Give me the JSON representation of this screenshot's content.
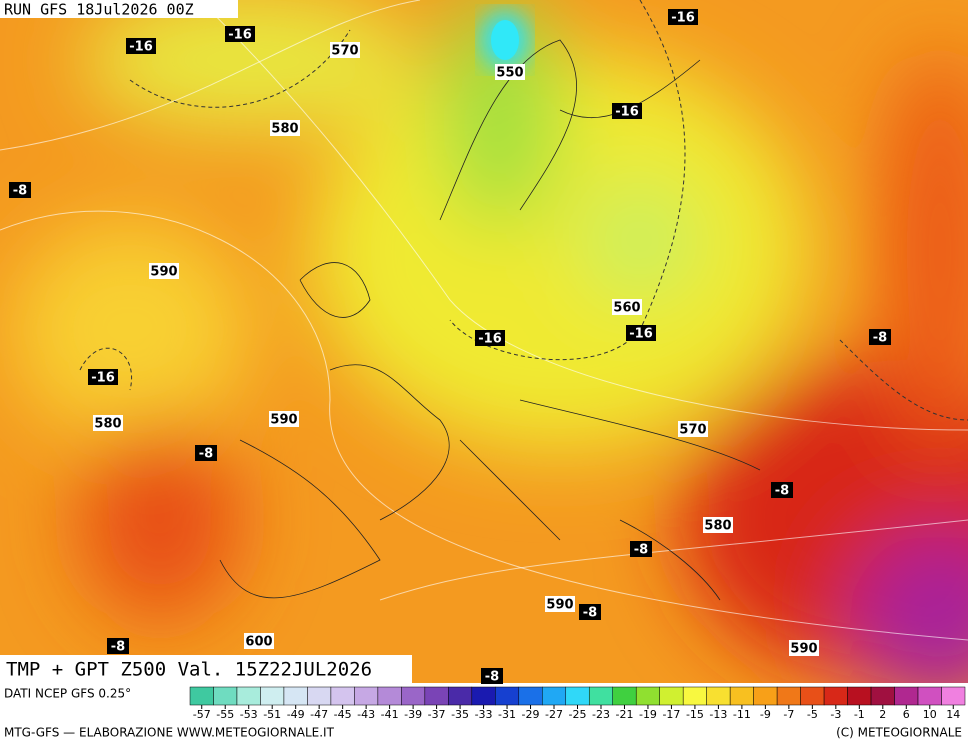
{
  "header": {
    "run": "RUN GFS 18Jul2026 00Z"
  },
  "map": {
    "labels": [
      "-16",
      "-16",
      "570",
      "-16",
      "550",
      "580",
      "-16",
      "-8",
      "590",
      "560",
      "-16",
      "-16",
      "-8",
      "-16",
      "580",
      "590",
      "570",
      "-8",
      "-8",
      "580",
      "-8",
      "590",
      "-8",
      "-8",
      "600",
      "590",
      "-8"
    ]
  },
  "footer": {
    "title": "TMP + GPT Z500 Val. 15Z22JUL2026",
    "source": "DATI NCEP GFS 0.25°",
    "credit": "MTG-GFS — ELABORAZIONE WWW.METEOGIORNALE.IT",
    "copyright": "(C) METEOGIORNALE"
  },
  "colorbar": {
    "ticks": [
      -57,
      -55,
      -53,
      -51,
      -49,
      -47,
      -45,
      -43,
      -41,
      -39,
      -37,
      -35,
      -33,
      -31,
      -29,
      -27,
      -25,
      -23,
      -21,
      -19,
      -17,
      -15,
      -13,
      -11,
      -9,
      -7,
      -5,
      -3,
      -1,
      2,
      6,
      10,
      14
    ],
    "colors": [
      "#3fc9a0",
      "#6fdcc0",
      "#a8ecdc",
      "#cfeef0",
      "#d6e6f4",
      "#d8d8f2",
      "#d4c4ee",
      "#c6a8e4",
      "#b48ad8",
      "#9a66c8",
      "#7a44b6",
      "#4a2aa8",
      "#1a1ab0",
      "#1640d0",
      "#1a70e8",
      "#20a8f4",
      "#30d8f8",
      "#40e0a0",
      "#40d040",
      "#90e030",
      "#d0f030",
      "#f8f840",
      "#f8e030",
      "#f8c020",
      "#f8a018",
      "#f07818",
      "#e85018",
      "#d82818",
      "#b81020",
      "#a01040",
      "#b02890",
      "#d050c0",
      "#f080e0"
    ]
  }
}
